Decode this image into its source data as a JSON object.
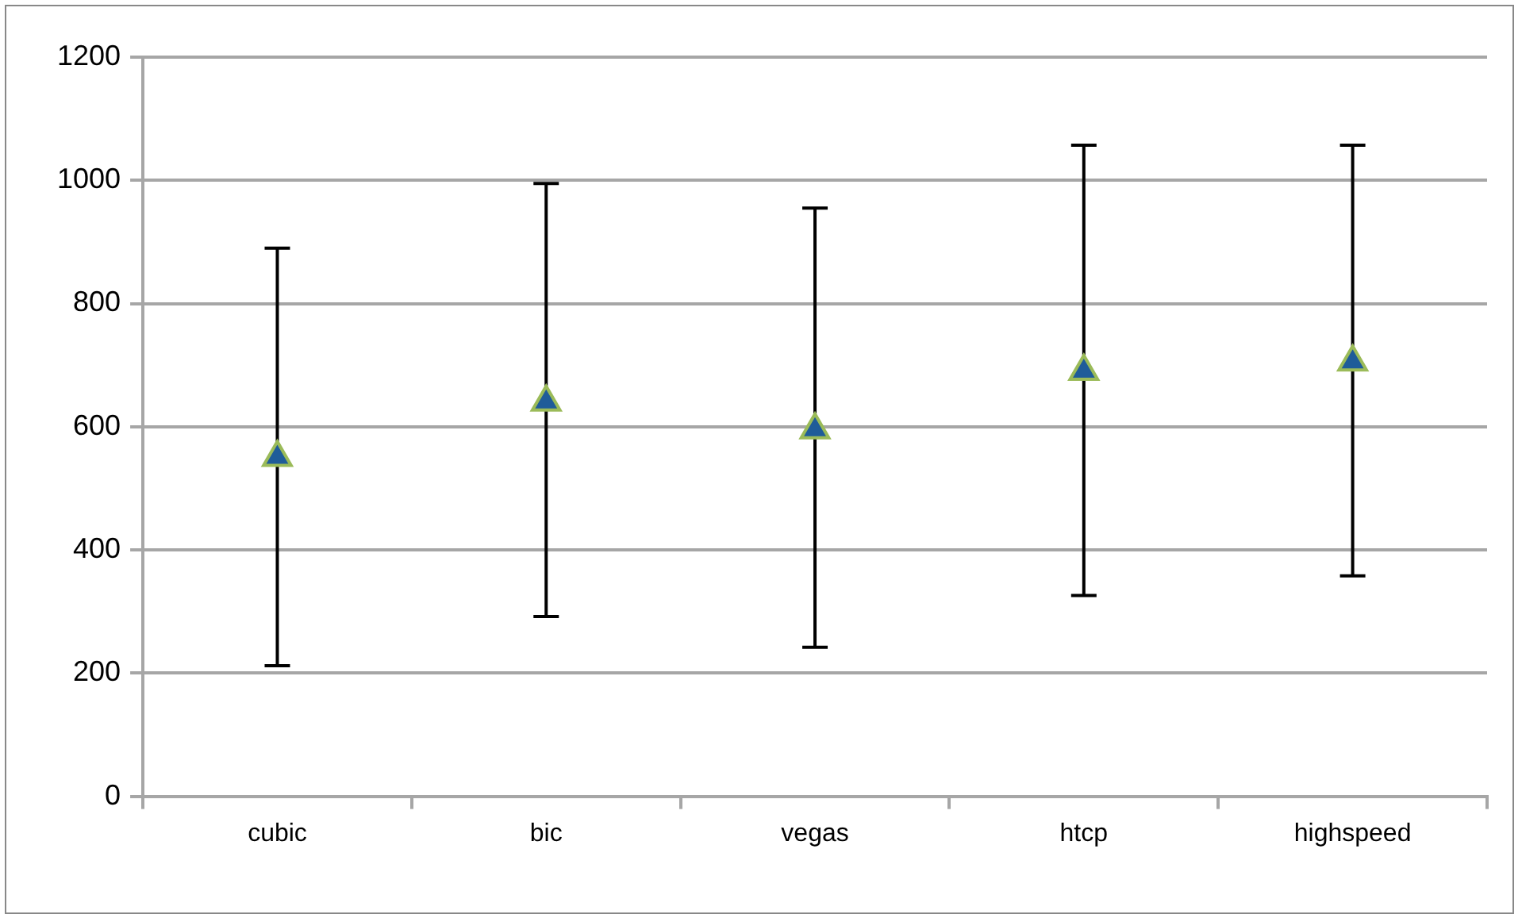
{
  "chart_data": {
    "type": "scatter",
    "categories": [
      "cubic",
      "bic",
      "vegas",
      "htcp",
      "highspeed"
    ],
    "series": [
      {
        "color": "#1f5c99",
        "values": [
          550,
          640,
          595,
          690,
          705
        ],
        "errors": [
          [
            212,
            890
          ],
          [
            292,
            995
          ],
          [
            242,
            955
          ],
          [
            326,
            1057
          ],
          [
            358,
            1057
          ]
        ]
      }
    ],
    "ylim": [
      0,
      1200
    ],
    "yticks": [
      0,
      200,
      400,
      600,
      800,
      1000,
      1200
    ],
    "grid": "y",
    "legend": false,
    "marker": "triangle"
  }
}
